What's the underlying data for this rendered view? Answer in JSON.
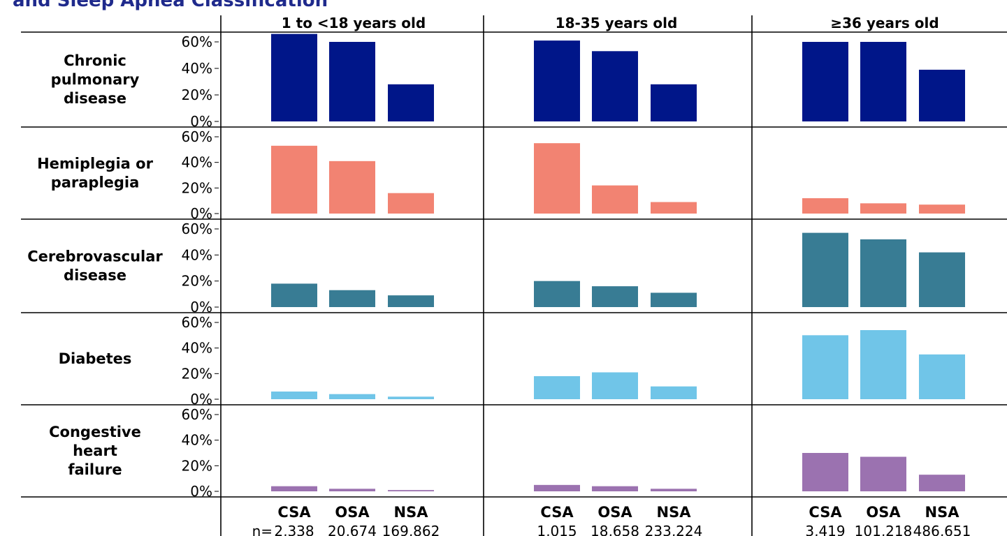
{
  "title": "and Sleep Apnea Classification",
  "chart_data": {
    "type": "bar",
    "categories": [
      "CSA",
      "OSA",
      "NSA"
    ],
    "y_ticks": [
      "0%",
      "20%",
      "40%",
      "60%"
    ],
    "ylim": [
      0,
      65
    ],
    "n_prefix": "n=",
    "age_groups": [
      {
        "label": "1 to <18 years old",
        "n": [
          "2,338",
          "20,674",
          "169,862"
        ]
      },
      {
        "label": "18-35 years old",
        "n": [
          "1,015",
          "18,658",
          "233,224"
        ]
      },
      {
        "label": "≥36 years old",
        "n": [
          "3,419",
          "101,218",
          "486,651"
        ]
      }
    ],
    "rows": [
      {
        "label": [
          "Chronic",
          "pulmonary",
          "disease"
        ],
        "color": "#001689",
        "values": [
          [
            66,
            60,
            28
          ],
          [
            61,
            53,
            28
          ],
          [
            60,
            60,
            39
          ]
        ]
      },
      {
        "label": [
          "Hemiplegia or",
          "paraplegia"
        ],
        "color": "#f28372",
        "values": [
          [
            53,
            41,
            16
          ],
          [
            55,
            22,
            9
          ],
          [
            12,
            8,
            7
          ]
        ]
      },
      {
        "label": [
          "Cerebrovascular",
          "disease"
        ],
        "color": "#387c94",
        "values": [
          [
            18,
            13,
            9
          ],
          [
            20,
            16,
            11
          ],
          [
            57,
            52,
            42
          ]
        ]
      },
      {
        "label": [
          "Diabetes"
        ],
        "color": "#70c5e8",
        "values": [
          [
            6,
            4,
            2
          ],
          [
            18,
            21,
            10
          ],
          [
            50,
            54,
            35
          ]
        ]
      },
      {
        "label": [
          "Congestive",
          "heart",
          "failure"
        ],
        "color": "#9b72b0",
        "values": [
          [
            4,
            2,
            1
          ],
          [
            5,
            4,
            2
          ],
          [
            30,
            27,
            13
          ]
        ]
      }
    ]
  }
}
